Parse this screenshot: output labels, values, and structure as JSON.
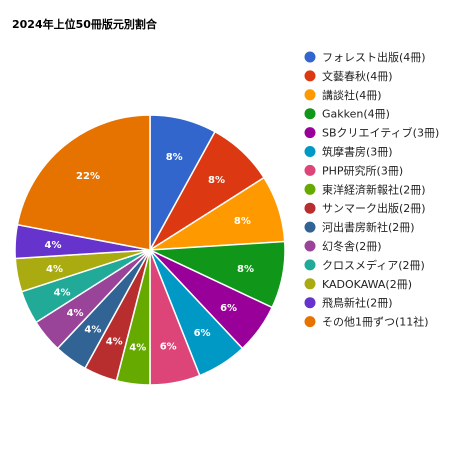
{
  "chart_data": {
    "type": "pie",
    "title": "2024年上位50冊版元別割合",
    "legend": "right",
    "slices": [
      {
        "name": "フォレスト出版(4冊)",
        "value": 4,
        "label": "8%",
        "color": "#3366cc"
      },
      {
        "name": "文藝春秋(4冊)",
        "value": 4,
        "label": "8%",
        "color": "#dc3912"
      },
      {
        "name": "講談社(4冊)",
        "value": 4,
        "label": "8%",
        "color": "#ff9900"
      },
      {
        "name": "Gakken(4冊)",
        "value": 4,
        "label": "8%",
        "color": "#109618"
      },
      {
        "name": "SBクリエイティブ(3冊)",
        "value": 3,
        "label": "6%",
        "color": "#990099"
      },
      {
        "name": "筑摩書房(3冊)",
        "value": 3,
        "label": "6%",
        "color": "#0099c6"
      },
      {
        "name": "PHP研究所(3冊)",
        "value": 3,
        "label": "6%",
        "color": "#dd4477"
      },
      {
        "name": "東洋経済新報社(2冊)",
        "value": 2,
        "label": "4%",
        "color": "#66aa00"
      },
      {
        "name": "サンマーク出版(2冊)",
        "value": 2,
        "label": "4%",
        "color": "#b82e2e"
      },
      {
        "name": "河出書房新社(2冊)",
        "value": 2,
        "label": "4%",
        "color": "#316395"
      },
      {
        "name": "幻冬舎(2冊)",
        "value": 2,
        "label": "4%",
        "color": "#994499"
      },
      {
        "name": "クロスメディア(2冊)",
        "value": 2,
        "label": "4%",
        "color": "#22aa99"
      },
      {
        "name": "KADOKAWA(2冊)",
        "value": 2,
        "label": "4%",
        "color": "#aaaa11"
      },
      {
        "name": "飛鳥新社(2冊)",
        "value": 2,
        "label": "4%",
        "color": "#6633cc"
      },
      {
        "name": "その他1冊ずつ(11社)",
        "value": 11,
        "label": "22%",
        "color": "#e67300"
      }
    ]
  }
}
